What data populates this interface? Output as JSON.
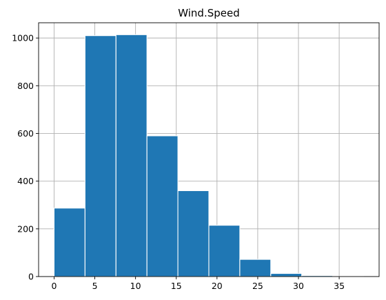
{
  "chart_data": {
    "type": "bar",
    "title": "Wind.Speed",
    "xlabel": "",
    "ylabel": "",
    "bins": [
      {
        "start": 0.0,
        "end": 3.8,
        "count": 287
      },
      {
        "start": 3.8,
        "end": 7.6,
        "count": 1010
      },
      {
        "start": 7.6,
        "end": 11.4,
        "count": 1014
      },
      {
        "start": 11.4,
        "end": 15.2,
        "count": 590
      },
      {
        "start": 15.2,
        "end": 19.0,
        "count": 360
      },
      {
        "start": 19.0,
        "end": 22.8,
        "count": 215
      },
      {
        "start": 22.8,
        "end": 26.6,
        "count": 72
      },
      {
        "start": 26.6,
        "end": 30.4,
        "count": 13
      },
      {
        "start": 30.4,
        "end": 34.2,
        "count": 4
      },
      {
        "start": 34.2,
        "end": 38.0,
        "count": 1
      }
    ],
    "xlim": [
      -1.9,
      39.9
    ],
    "ylim": [
      0,
      1064
    ],
    "xticks": [
      0,
      5,
      10,
      15,
      20,
      25,
      30,
      35
    ],
    "yticks": [
      0,
      200,
      400,
      600,
      800,
      1000
    ],
    "grid": true,
    "bar_color": "#1f77b4",
    "edge_color": "#ffffff",
    "grid_color": "#b0b0b0"
  }
}
